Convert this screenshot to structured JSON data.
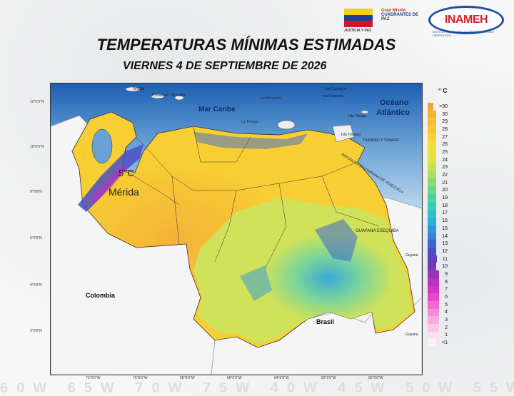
{
  "header": {
    "title": "TEMPERATURAS MÍNIMAS ESTIMADAS",
    "date": "VIERNES 4 DE SEPTIEMBRE DE 2026"
  },
  "logos": {
    "flag_caption": "JUSTICIA Y PAZ",
    "gmc_line1": "Gran Misión",
    "gmc_line2": "CUADRANTES DE PAZ",
    "inameh": "INAMEH",
    "inameh_sub": "INSTITUTO NACIONAL DE METEOROLOGÍA E HIDROLOGÍA",
    "flag_colors": [
      "#f7d117",
      "#1f3f99",
      "#cf142b"
    ]
  },
  "map": {
    "labels": {
      "mar_caribe": "Mar Caribe",
      "oceano": "Océano",
      "atlantico": "Atlántico",
      "colombia": "Colombia",
      "brasil": "Brasil",
      "guyana_esequiba": "GUAYANA ESEQUIBA",
      "guyana1": "Guyana",
      "guyana2": "Guyana",
      "aruba": "Aruba",
      "curazao": "Curazao",
      "bonaire": "Bonaire",
      "la_blanquilla": "La Blanquilla",
      "la_tortuga": "La Tortuga",
      "isla_tobago": "Isla Tobago",
      "isla_trinidad": "Isla Trinidad",
      "trinidad_tobago": "TRINIDAD Y TOBAGO",
      "rep_bolivariana": "REPÚBLICA BOLIVARIANA DE VENEZUELA",
      "isla_carriacou": "Isla Carriacou",
      "isla_granada": "Isla Granada"
    },
    "annotation": {
      "temp": "5°C",
      "city": "Mérida"
    },
    "lat_ticks": [
      "12°0'0\"N",
      "10°0'0\"N",
      "8°0'0\"N",
      "6°0'0\"N",
      "4°0'0\"N",
      "2°0'0\"N"
    ],
    "lon_ticks": [
      "72°0'0\"W",
      "70°0'0\"W",
      "68°0'0\"W",
      "66°0'0\"W",
      "64°0'0\"W",
      "62°0'0\"W",
      "60°0'0\"W"
    ]
  },
  "legend": {
    "unit": "° C",
    "items": [
      {
        "label": ">30",
        "color": "#f2a93b"
      },
      {
        "label": "30",
        "color": "#f5b238"
      },
      {
        "label": "29",
        "color": "#f7bd35"
      },
      {
        "label": "28",
        "color": "#f9c733"
      },
      {
        "label": "27",
        "color": "#fbd233"
      },
      {
        "label": "26",
        "color": "#f7dc36"
      },
      {
        "label": "25",
        "color": "#eee03c"
      },
      {
        "label": "24",
        "color": "#dce347"
      },
      {
        "label": "23",
        "color": "#c5e253"
      },
      {
        "label": "22",
        "color": "#a8de62"
      },
      {
        "label": "21",
        "color": "#87da74"
      },
      {
        "label": "20",
        "color": "#66d689"
      },
      {
        "label": "19",
        "color": "#4ad39e"
      },
      {
        "label": "18",
        "color": "#37cdb3"
      },
      {
        "label": "17",
        "color": "#2ec3c7"
      },
      {
        "label": "16",
        "color": "#2cb2d4"
      },
      {
        "label": "15",
        "color": "#2d9bd9"
      },
      {
        "label": "14",
        "color": "#3381d8"
      },
      {
        "label": "13",
        "color": "#3c67d0"
      },
      {
        "label": "12",
        "color": "#4a4fc6"
      },
      {
        "label": "11",
        "color": "#5f3fbe"
      },
      {
        "label": "10",
        "color": "#7b37b9"
      },
      {
        "label": "9",
        "color": "#9a33b8"
      },
      {
        "label": "8",
        "color": "#b733bc"
      },
      {
        "label": "7",
        "color": "#d236c3"
      },
      {
        "label": "6",
        "color": "#e648c9"
      },
      {
        "label": "5",
        "color": "#ef6ccf"
      },
      {
        "label": "4",
        "color": "#f48dd7"
      },
      {
        "label": "3",
        "color": "#f6acdf"
      },
      {
        "label": "2",
        "color": "#f8c8e8"
      },
      {
        "label": "1",
        "color": "#fae1f1"
      },
      {
        "label": "<1",
        "color": "#fdf3f9"
      }
    ]
  },
  "watermark": "60W 65W 70W 75W 40W 45W 50W 55W"
}
